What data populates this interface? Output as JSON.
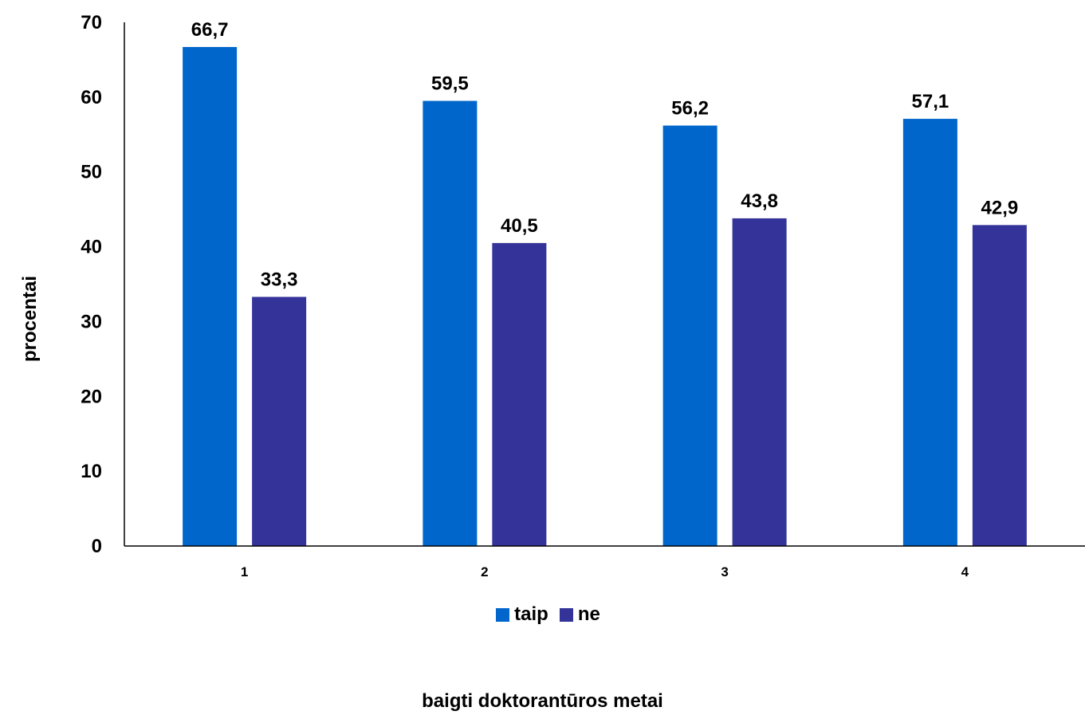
{
  "chart_data": {
    "type": "bar",
    "categories": [
      "1",
      "2",
      "3",
      "4"
    ],
    "series": [
      {
        "name": "taip",
        "values": [
          66.7,
          59.5,
          56.2,
          57.1
        ],
        "labels": [
          "66,7",
          "59,5",
          "56,2",
          "57,1"
        ],
        "color": "#0066CC"
      },
      {
        "name": "ne",
        "values": [
          33.3,
          40.5,
          43.8,
          42.9
        ],
        "labels": [
          "33,3",
          "40,5",
          "43,8",
          "42,9"
        ],
        "color": "#333399"
      }
    ],
    "xlabel": "baigti doktorantūros metai",
    "ylabel": "procentai",
    "ylim": [
      0,
      70
    ],
    "yticks": [
      0,
      10,
      20,
      30,
      40,
      50,
      60,
      70
    ],
    "grid": false,
    "legend_position": "bottom"
  }
}
